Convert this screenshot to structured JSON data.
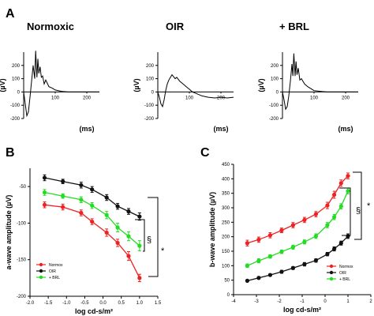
{
  "colors": {
    "normox": "#ee2222",
    "oir": "#111111",
    "brl": "#22dd22",
    "axis": "#000000"
  },
  "panels": {
    "a": "A",
    "b": "B",
    "c": "C"
  },
  "traces": {
    "titles": [
      "Normoxic",
      "OIR",
      "+ BRL"
    ],
    "ylabel": "(µV)",
    "xlabel": "(ms)",
    "y_ticks": [
      "200",
      "100",
      "0",
      "-100",
      "-200"
    ],
    "x_ticks": [
      "100",
      "200"
    ]
  },
  "chart_data": [
    {
      "type": "line",
      "title": "Normoxic",
      "xlabel": "(ms)",
      "ylabel": "(µV)",
      "xlim": [
        0,
        240
      ],
      "ylim": [
        -200,
        300
      ],
      "x": [
        0,
        5,
        10,
        15,
        20,
        25,
        30,
        35,
        38,
        42,
        45,
        48,
        52,
        56,
        60,
        65,
        70,
        80,
        90,
        100,
        110,
        120,
        140,
        160,
        180,
        200,
        220,
        240
      ],
      "y": [
        0,
        -90,
        -180,
        -150,
        -40,
        80,
        200,
        100,
        310,
        110,
        250,
        140,
        190,
        110,
        120,
        60,
        90,
        40,
        30,
        15,
        10,
        5,
        0,
        0,
        0,
        0,
        0,
        0
      ]
    },
    {
      "type": "line",
      "title": "OIR",
      "xlabel": "(ms)",
      "ylabel": "(µV)",
      "xlim": [
        0,
        240
      ],
      "ylim": [
        -200,
        300
      ],
      "x": [
        0,
        5,
        10,
        15,
        20,
        25,
        30,
        35,
        40,
        45,
        50,
        55,
        60,
        70,
        80,
        90,
        100,
        110,
        120,
        140,
        160,
        180,
        200,
        220,
        240
      ],
      "y": [
        0,
        -40,
        -90,
        -110,
        -60,
        10,
        60,
        90,
        110,
        130,
        115,
        100,
        110,
        80,
        60,
        40,
        20,
        0,
        -10,
        -30,
        -40,
        -45,
        -40,
        -45,
        -40
      ]
    },
    {
      "type": "line",
      "title": "+ BRL",
      "xlabel": "(ms)",
      "ylabel": "(µV)",
      "xlim": [
        0,
        240
      ],
      "ylim": [
        -200,
        300
      ],
      "x": [
        0,
        5,
        10,
        15,
        20,
        25,
        30,
        33,
        36,
        40,
        43,
        46,
        50,
        55,
        60,
        70,
        80,
        90,
        100,
        120,
        140,
        160,
        180,
        200,
        220,
        240
      ],
      "y": [
        0,
        -60,
        -130,
        -110,
        -30,
        80,
        210,
        120,
        290,
        120,
        230,
        130,
        180,
        90,
        100,
        60,
        40,
        25,
        10,
        5,
        0,
        0,
        0,
        0,
        0,
        0
      ]
    },
    {
      "type": "line",
      "xlabel": "log cd-s/m²",
      "ylabel": "a-wave amplitude (µV)",
      "xlim": [
        -2.0,
        1.5
      ],
      "ylim": [
        -200,
        -25
      ],
      "x_ticks": [
        "-2.0",
        "-1.5",
        "-1.0",
        "-0.5",
        "0.0",
        "0.5",
        "1.0",
        "1.5"
      ],
      "y_ticks": [
        "-50",
        "-100",
        "-150",
        "-200"
      ],
      "legend": "bottom-left",
      "x": [
        -1.6,
        -1.1,
        -0.6,
        -0.3,
        0.1,
        0.4,
        0.7,
        1.0
      ],
      "series": [
        {
          "name": "Normox",
          "color": "#ee2222",
          "values": [
            -75,
            -78,
            -86,
            -98,
            -113,
            -127,
            -145,
            -175
          ],
          "err": [
            4,
            4,
            4,
            4,
            5,
            5,
            6,
            5
          ]
        },
        {
          "name": "OIR",
          "color": "#111111",
          "values": [
            -38,
            -43,
            -48,
            -54,
            -65,
            -77,
            -84,
            -91
          ],
          "err": [
            4,
            3,
            4,
            4,
            4,
            4,
            4,
            5
          ]
        },
        {
          "name": "+ BRL",
          "color": "#22dd22",
          "values": [
            -58,
            -63,
            -68,
            -76,
            -89,
            -106,
            -118,
            -131
          ],
          "err": [
            4,
            3,
            4,
            4,
            5,
            6,
            6,
            7
          ]
        }
      ],
      "annotations": [
        "§",
        "*"
      ]
    },
    {
      "type": "line",
      "xlabel": "log cd-s/m²",
      "ylabel": "b-wave amplitude (µV)",
      "xlim": [
        -4,
        2
      ],
      "ylim": [
        0,
        450
      ],
      "x_ticks": [
        "-4",
        "-3",
        "-2",
        "-1",
        "0",
        "1",
        "2"
      ],
      "y_ticks": [
        "0",
        "50",
        "100",
        "150",
        "200",
        "250",
        "300",
        "350",
        "400",
        "450"
      ],
      "legend": "bottom-right",
      "x": [
        -3.4,
        -2.9,
        -2.4,
        -1.9,
        -1.4,
        -0.9,
        -0.4,
        0.1,
        0.4,
        0.7,
        1.0
      ],
      "series": [
        {
          "name": "Normox",
          "color": "#ee2222",
          "values": [
            178,
            190,
            205,
            222,
            240,
            258,
            278,
            308,
            345,
            385,
            410
          ],
          "err": [
            10,
            9,
            9,
            8,
            9,
            9,
            9,
            11,
            12,
            11,
            10
          ]
        },
        {
          "name": "OIR",
          "color": "#111111",
          "values": [
            48,
            58,
            68,
            79,
            92,
            105,
            118,
            140,
            158,
            178,
            202
          ],
          "err": [
            3,
            4,
            4,
            5,
            5,
            6,
            6,
            6,
            7,
            7,
            8
          ]
        },
        {
          "name": "+ BRL",
          "color": "#22dd22",
          "values": [
            100,
            117,
            132,
            148,
            164,
            182,
            202,
            240,
            268,
            305,
            358
          ],
          "err": [
            6,
            7,
            6,
            6,
            7,
            7,
            8,
            9,
            9,
            9,
            10
          ]
        }
      ],
      "annotations": [
        "§",
        "*"
      ]
    }
  ]
}
